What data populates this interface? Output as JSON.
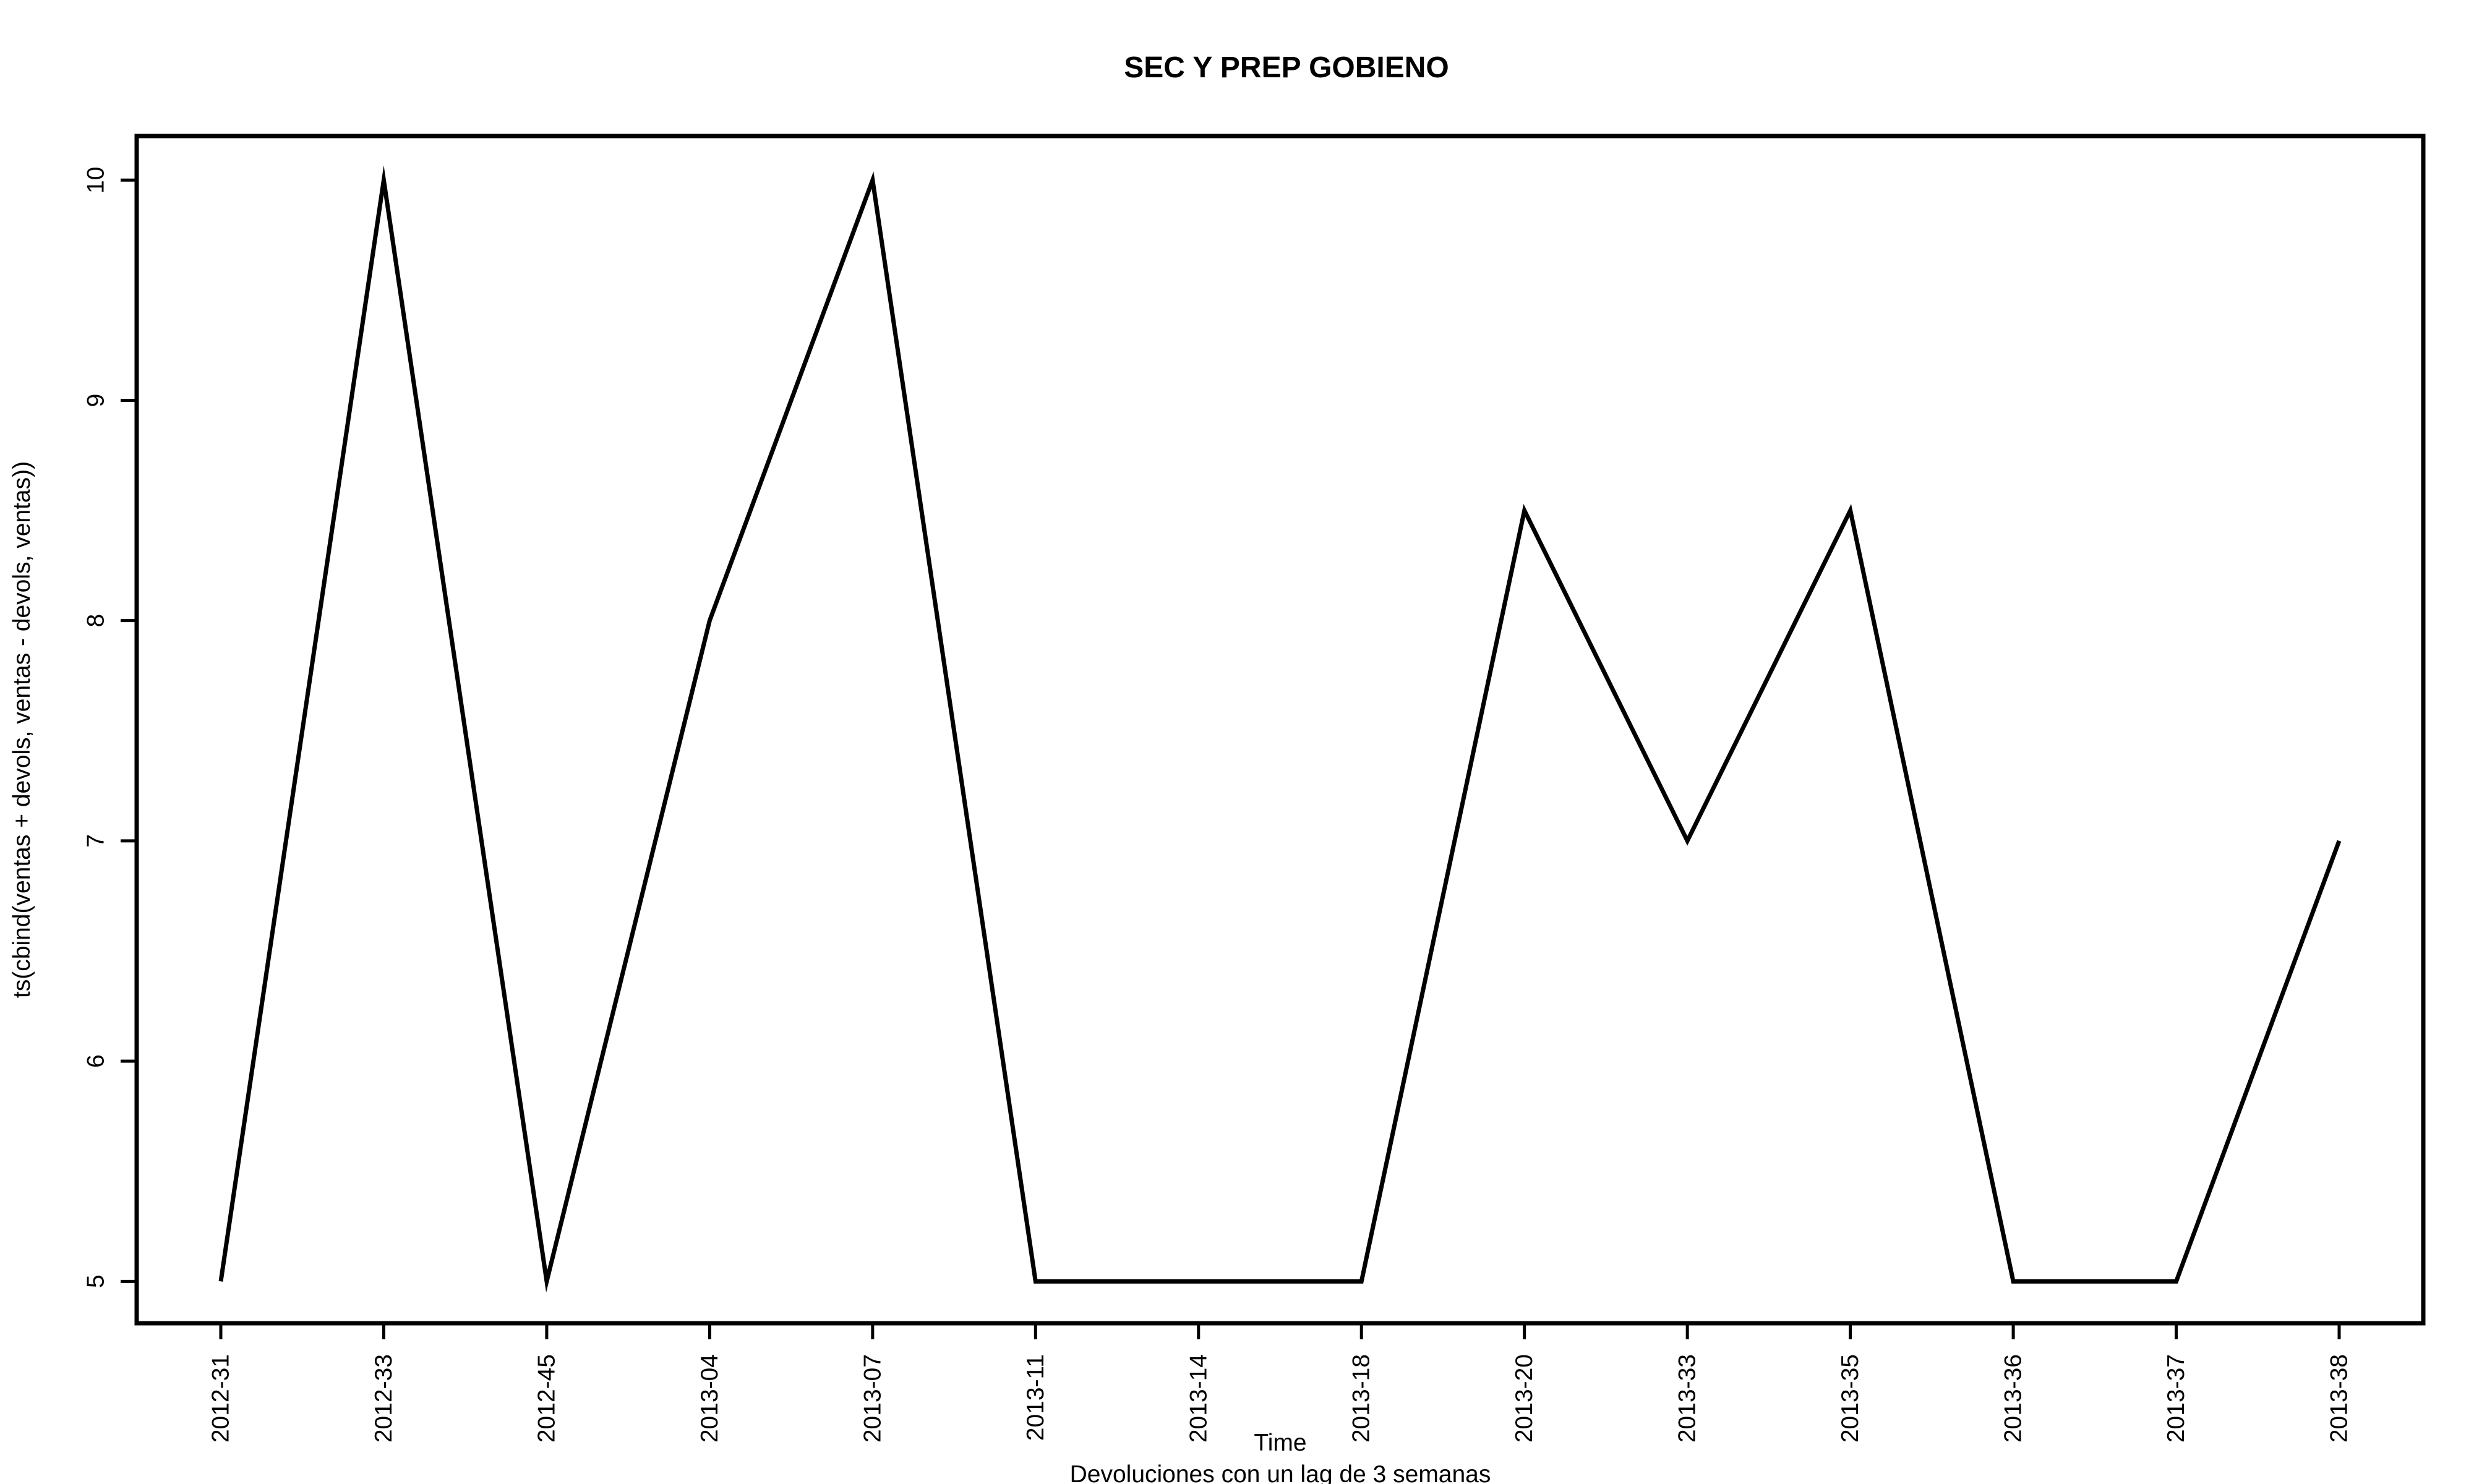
{
  "chart_data": {
    "type": "line",
    "title": "SEC Y PREP GOBIENO",
    "xlabel": "Time",
    "subtitle": "Devoluciones con un lag de 3 semanas",
    "ylabel": "ts(cbind(ventas + devols, ventas - devols, ventas))",
    "categories": [
      "2012-31",
      "2012-33",
      "2012-45",
      "2013-04",
      "2013-07",
      "2013-11",
      "2013-14",
      "2013-18",
      "2013-20",
      "2013-33",
      "2013-35",
      "2013-36",
      "2013-37",
      "2013-38"
    ],
    "series": [
      {
        "values": [
          5,
          10,
          5,
          8,
          10,
          5,
          5,
          5,
          8.5,
          7,
          8.5,
          5,
          5,
          7
        ]
      }
    ],
    "ylim": [
      4.81,
      10.2
    ],
    "yticks": [
      "5",
      "6",
      "7",
      "8",
      "9",
      "10"
    ],
    "line_color": "#000000",
    "grid": false,
    "legend": "none"
  }
}
